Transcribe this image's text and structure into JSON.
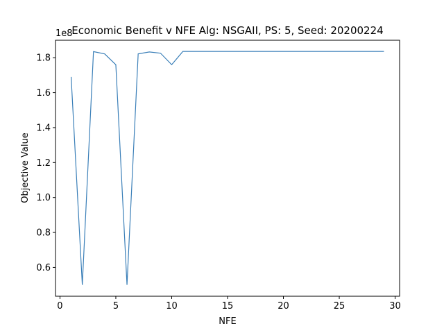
{
  "chart_data": {
    "type": "line",
    "title": "Economic Benefit v NFE Alg: NSGAII, PS: 5, Seed: 20200224",
    "xlabel": "NFE",
    "ylabel": "Objective Value",
    "y_offset_label": "1e8",
    "xlim": [
      -0.4,
      30.4
    ],
    "ylim": [
      0.435,
      1.9
    ],
    "x_ticks": [
      0,
      5,
      10,
      15,
      20,
      25,
      30
    ],
    "x_tick_labels": [
      "0",
      "5",
      "10",
      "15",
      "20",
      "25",
      "30"
    ],
    "y_ticks": [
      0.6,
      0.8,
      1.0,
      1.2,
      1.4,
      1.6,
      1.8
    ],
    "y_tick_labels": [
      "0.6",
      "0.8",
      "1.0",
      "1.2",
      "1.4",
      "1.6",
      "1.8"
    ],
    "grid": false,
    "line_color": "#3a7fb8",
    "series": [
      {
        "x": [
          1,
          2,
          3,
          4,
          5,
          6,
          7,
          8,
          9,
          10,
          11,
          12,
          13,
          14,
          15,
          16,
          17,
          18,
          19,
          20,
          21,
          22,
          23,
          24,
          25,
          26,
          27,
          28,
          29
        ],
        "values": [
          1.69,
          0.5,
          1.835,
          1.822,
          1.76,
          0.5,
          1.822,
          1.833,
          1.826,
          1.76,
          1.836,
          1.836,
          1.836,
          1.836,
          1.836,
          1.836,
          1.836,
          1.836,
          1.836,
          1.836,
          1.836,
          1.836,
          1.836,
          1.836,
          1.836,
          1.836,
          1.836,
          1.836,
          1.836
        ]
      }
    ]
  }
}
